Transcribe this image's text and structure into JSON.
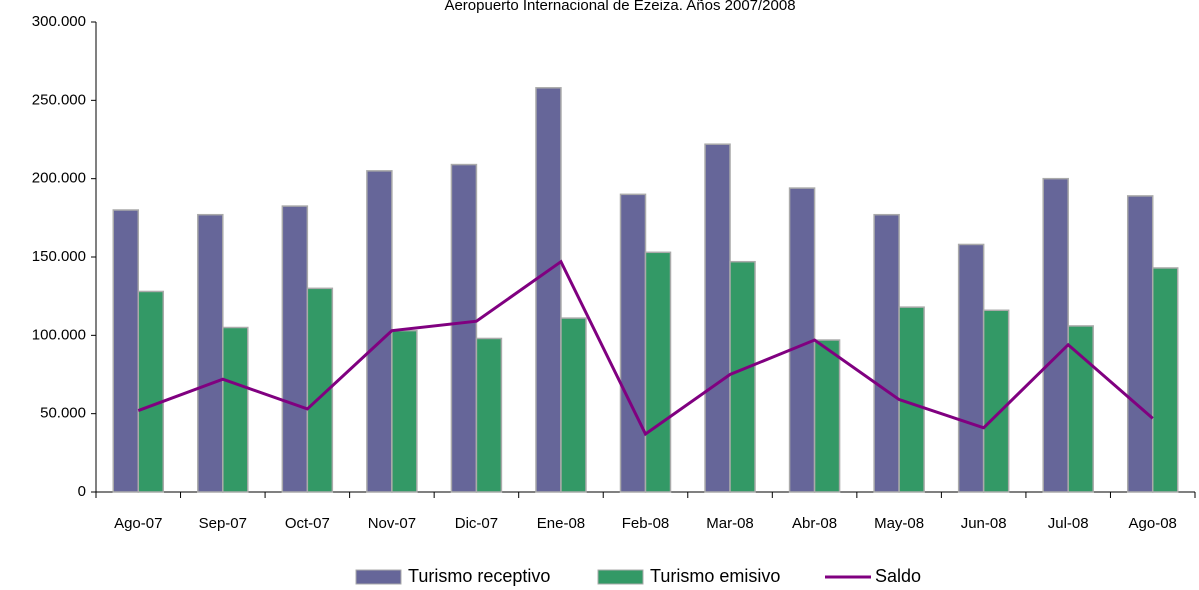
{
  "chart_data": {
    "type": "bar_line",
    "title": "Aeropuerto Internacional de Ezeiza. Años 2007/2008",
    "categories": [
      "Ago-07",
      "Sep-07",
      "Oct-07",
      "Nov-07",
      "Dic-07",
      "Ene-08",
      "Feb-08",
      "Mar-08",
      "Abr-08",
      "May-08",
      "Jun-08",
      "Jul-08",
      "Ago-08"
    ],
    "series": [
      {
        "name": "Turismo receptivo",
        "type": "bar",
        "color": "#666699",
        "values": [
          180000,
          177000,
          182500,
          205000,
          209000,
          258000,
          190000,
          222000,
          194000,
          177000,
          158000,
          200000,
          189000
        ]
      },
      {
        "name": "Turismo emisivo",
        "type": "bar",
        "color": "#339966",
        "values": [
          128000,
          105000,
          130000,
          103000,
          98000,
          111000,
          153000,
          147000,
          97000,
          118000,
          116000,
          106000,
          143000
        ]
      },
      {
        "name": "Saldo",
        "type": "line",
        "color": "#800080",
        "values": [
          52000,
          72000,
          53000,
          103000,
          109000,
          147000,
          37000,
          75000,
          97000,
          59000,
          41000,
          94000,
          47000
        ]
      }
    ],
    "ylim": [
      0,
      300000
    ],
    "yticks": [
      {
        "value": 0,
        "label": "0"
      },
      {
        "value": 50000,
        "label": "50.000"
      },
      {
        "value": 100000,
        "label": "100.000"
      },
      {
        "value": 150000,
        "label": "150.000"
      },
      {
        "value": 200000,
        "label": "200.000"
      },
      {
        "value": 250000,
        "label": "250.000"
      },
      {
        "value": 300000,
        "label": "300.000"
      }
    ],
    "legend": "bottom"
  }
}
